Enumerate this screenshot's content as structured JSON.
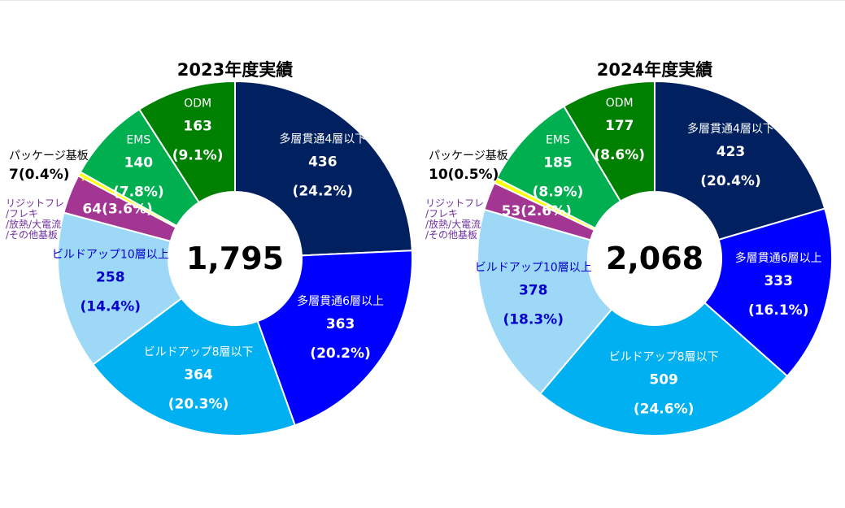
{
  "chart_data": [
    {
      "type": "pie",
      "title": "2023年度実績",
      "total": "1,795",
      "categories": [
        "多層貫通4層以下",
        "多層貫通6層以上",
        "ビルドアップ8層以下",
        "ビルドアップ10層以上",
        "リジットフレ/フレキ/放熱/大電流/その他基板",
        "パッケージ基板",
        "EMS",
        "ODM"
      ],
      "values": [
        436,
        363,
        364,
        258,
        64,
        7,
        140,
        163
      ],
      "percent_labels": [
        "(24.2%)",
        "(20.2%)",
        "(20.3%)",
        "(14.4%)",
        "(3.6%)",
        "(0.4%)",
        "(7.8%)",
        "(9.1%)"
      ],
      "value_labels": [
        "436",
        "363",
        "364",
        "258",
        "64",
        "7",
        "140",
        "163"
      ],
      "colors": [
        "#002060",
        "#0000ff",
        "#00b0f0",
        "#9dd9f6",
        "#a33593",
        "#ffff00",
        "#00b050",
        "#008000"
      ],
      "combined_labels": {
        "4": "64(3.6%)",
        "5": "7(0.4%)"
      }
    },
    {
      "type": "pie",
      "title": "2024年度実績",
      "total": "2,068",
      "categories": [
        "多層貫通4層以下",
        "多層貫通6層以上",
        "ビルドアップ8層以下",
        "ビルドアップ10層以上",
        "リジットフレ/フレキ/放熱/大電流/その他基板",
        "パッケージ基板",
        "EMS",
        "ODM"
      ],
      "values": [
        423,
        333,
        509,
        378,
        53,
        10,
        185,
        177
      ],
      "percent_labels": [
        "(20.4%)",
        "(16.1%)",
        "(24.6%)",
        "(18.3%)",
        "(2.6%)",
        "(0.5%)",
        "(8.9%)",
        "(8.6%)"
      ],
      "value_labels": [
        "423",
        "333",
        "509",
        "378",
        "53",
        "10",
        "185",
        "177"
      ],
      "colors": [
        "#002060",
        "#0000ff",
        "#00b0f0",
        "#9dd9f6",
        "#a33593",
        "#ffff00",
        "#00b050",
        "#008000"
      ],
      "combined_labels": {
        "4": "53(2.6%)",
        "5": "10(0.5%)"
      }
    }
  ],
  "text_labels": {
    "multi4": "多層貫通4層以下",
    "multi6": "多層貫通6層以上",
    "bu8": "ビルドアップ8層以下",
    "bu10": "ビルドアップ10層以上",
    "rigid": [
      "リジットフレ",
      "/フレキ",
      "/放熱/大電流",
      "/その他基板"
    ],
    "package": "パッケージ基板",
    "ems": "EMS",
    "odm": "ODM"
  }
}
